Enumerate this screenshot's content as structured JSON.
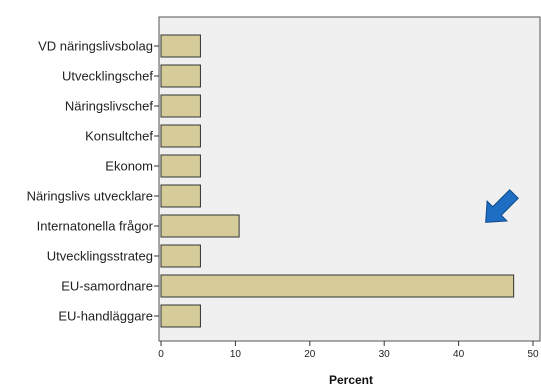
{
  "chart_data": {
    "type": "bar",
    "orientation": "horizontal",
    "categories": [
      "VD näringslivsbolag",
      "Utvecklingschef",
      "Näringslivschef",
      "Konsultchef",
      "Ekonom",
      "Näringslivs utvecklare",
      "Internatonella frågor",
      "Utvecklingsstrateg",
      "EU-samordnare",
      "EU-handläggare"
    ],
    "values": [
      5.3,
      5.3,
      5.3,
      5.3,
      5.3,
      5.3,
      10.5,
      5.3,
      47.4,
      5.3
    ],
    "xlabel": "Percent",
    "ylabel": "",
    "xlim": [
      0,
      51
    ],
    "xticks": [
      0,
      10,
      20,
      30,
      40,
      50
    ],
    "grid": false,
    "colors": {
      "bar_fill": "#d5cc9a",
      "bar_stroke": "#333333",
      "plot_background": "#f0f0f0",
      "arrow": "#1e6fc3"
    },
    "annotations": [
      {
        "type": "arrow",
        "direction": "down-left",
        "icon": "arrow-icon"
      }
    ]
  }
}
